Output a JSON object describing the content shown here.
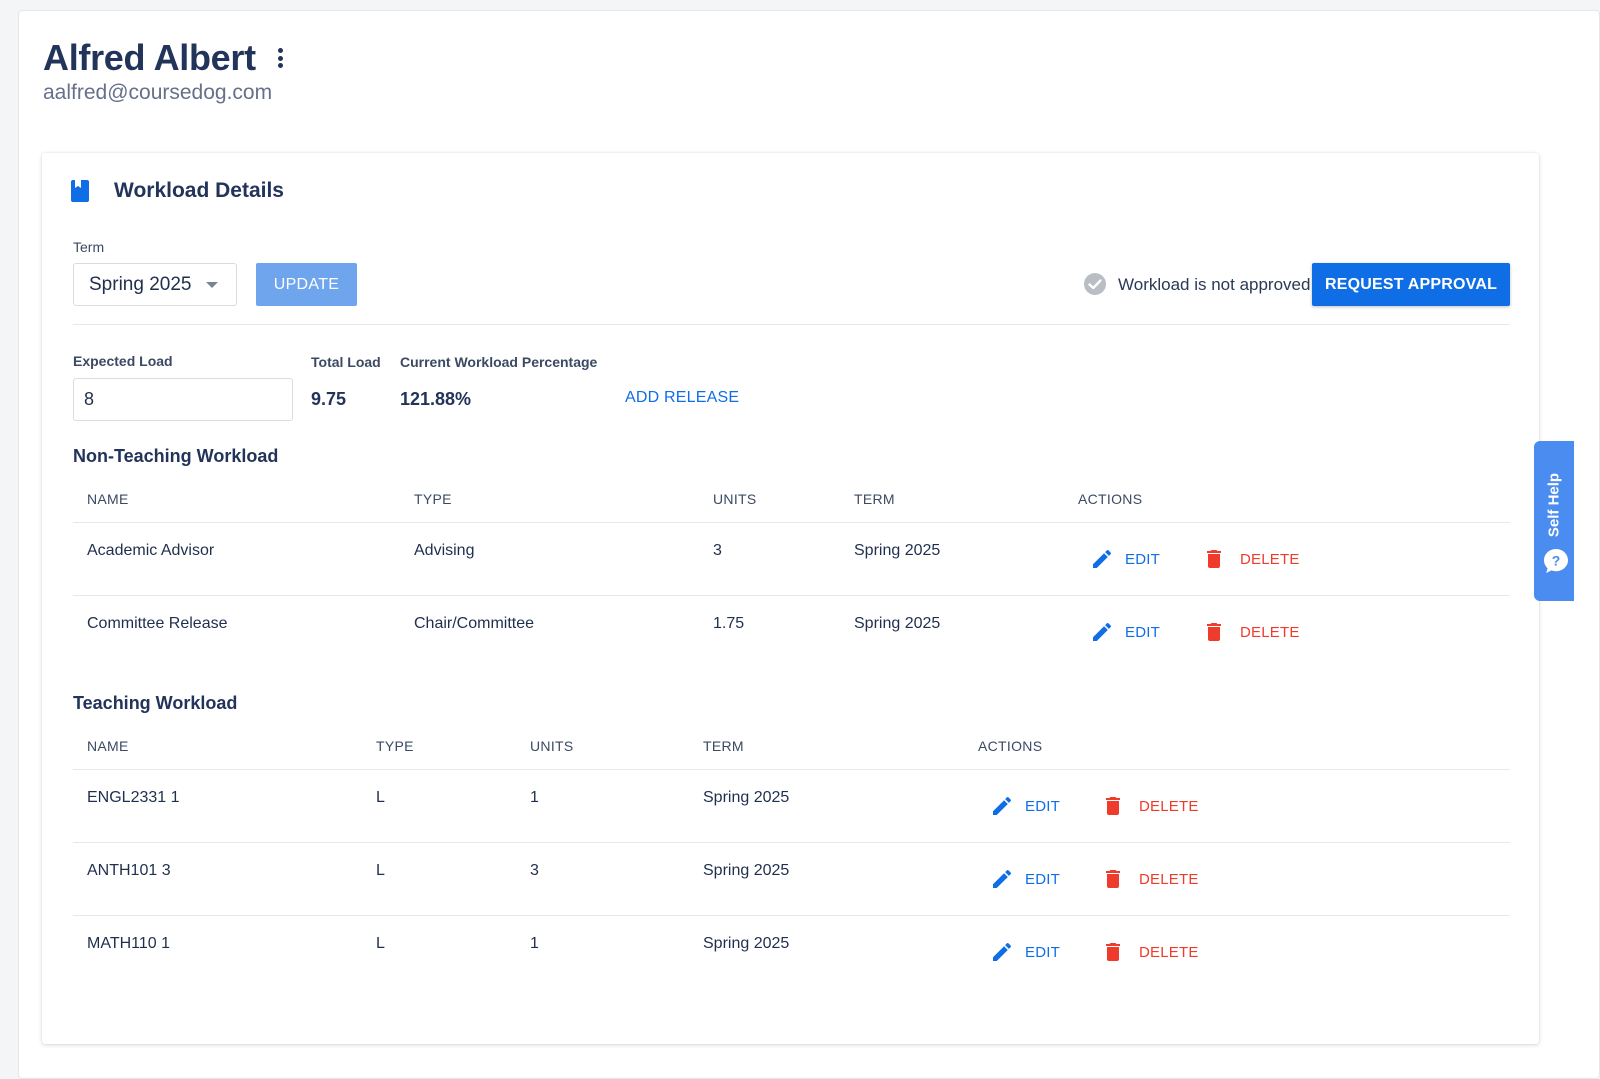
{
  "user": {
    "name": "Alfred Albert",
    "email": "aalfred@coursedog.com"
  },
  "card": {
    "title": "Workload Details",
    "term_label": "Term",
    "term_value": "Spring 2025",
    "update_label": "UPDATE",
    "approval_status": "Workload is not approved",
    "request_approval_label": "REQUEST APPROVAL"
  },
  "load": {
    "expected_label": "Expected Load",
    "expected_value": "8",
    "total_label": "Total Load",
    "total_value": "9.75",
    "percentage_label": "Current Workload Percentage",
    "percentage_value": "121.88%",
    "add_release_label": "ADD RELEASE"
  },
  "non_teaching": {
    "title": "Non-Teaching Workload",
    "columns": [
      "NAME",
      "TYPE",
      "UNITS",
      "TERM",
      "ACTIONS"
    ],
    "rows": [
      {
        "name": "Academic Advisor",
        "type": "Advising",
        "units": "3",
        "term": "Spring 2025"
      },
      {
        "name": "Committee Release",
        "type": "Chair/Committee",
        "units": "1.75",
        "term": "Spring 2025"
      }
    ]
  },
  "teaching": {
    "title": "Teaching Workload",
    "columns": [
      "NAME",
      "TYPE",
      "UNITS",
      "TERM",
      "ACTIONS"
    ],
    "rows": [
      {
        "name": "ENGL2331 1",
        "type": "L",
        "units": "1",
        "term": "Spring 2025"
      },
      {
        "name": "ANTH101 3",
        "type": "L",
        "units": "3",
        "term": "Spring 2025"
      },
      {
        "name": "MATH110 1",
        "type": "L",
        "units": "1",
        "term": "Spring 2025"
      }
    ]
  },
  "actions": {
    "edit_label": "EDIT",
    "delete_label": "DELETE"
  },
  "self_help": {
    "label": "Self Help"
  },
  "icons": {
    "card": "book-icon",
    "approval": "check-circle-icon",
    "edit": "pencil-icon",
    "delete": "trash-icon",
    "menu": "kebab-menu-icon",
    "help": "question-chat-icon"
  },
  "colors": {
    "primary": "#0f6ee6",
    "primary_disabled": "#6fa5ec",
    "danger": "#ee3b2b",
    "heading": "#22345a",
    "self_help": "#4a8cf0"
  }
}
